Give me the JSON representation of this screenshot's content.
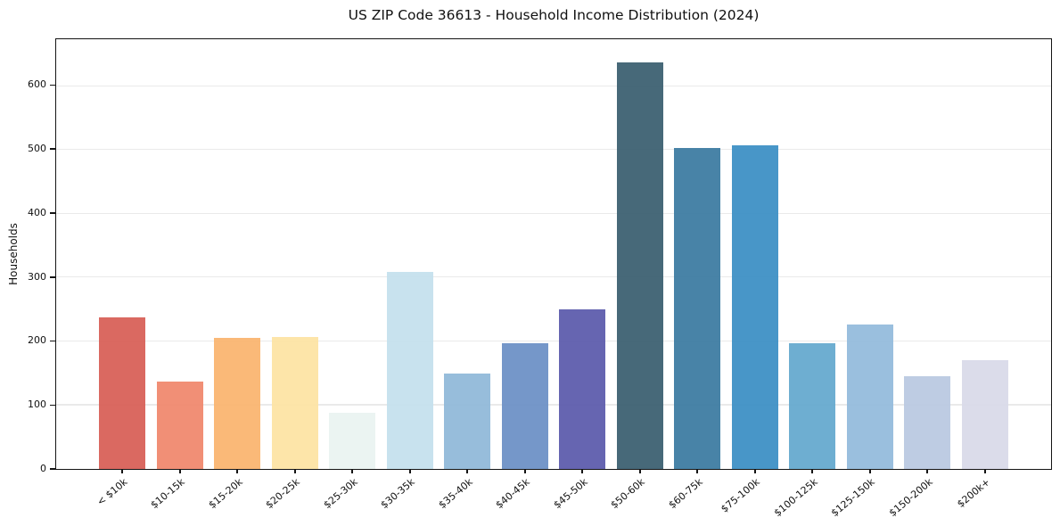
{
  "chart_data": {
    "type": "bar",
    "title": "US ZIP Code 36613 - Household Income Distribution (2024)",
    "xlabel": "",
    "ylabel": "Households",
    "categories": [
      "< $10k",
      "$10-15k",
      "$15-20k",
      "$20-25k",
      "$25-30k",
      "$30-35k",
      "$35-40k",
      "$40-45k",
      "$45-50k",
      "$50-60k",
      "$60-75k",
      "$75-100k",
      "$100-125k",
      "$125-150k",
      "$150-200k",
      "$200k+"
    ],
    "values": [
      238,
      137,
      205,
      207,
      88,
      309,
      150,
      197,
      251,
      638,
      504,
      507,
      197,
      227,
      145,
      171
    ],
    "bar_colors": [
      "#d75e55",
      "#f0876c",
      "#fab46e",
      "#fde3a2",
      "#e9f3f1",
      "#c4e0ed",
      "#8fb8d8",
      "#6b8fc5",
      "#5a59ab",
      "#395e6f",
      "#3a7aa0",
      "#3a8ec4",
      "#63a8ce",
      "#92badb",
      "#b9c8e1",
      "#d8d9e8"
    ],
    "ylim": [
      0,
      674
    ],
    "yticks": [
      0,
      100,
      200,
      300,
      400,
      500,
      600
    ],
    "grid": "horizontal",
    "grid_color": "#eaeaea",
    "axis_color": "#141414",
    "legend": "none"
  }
}
